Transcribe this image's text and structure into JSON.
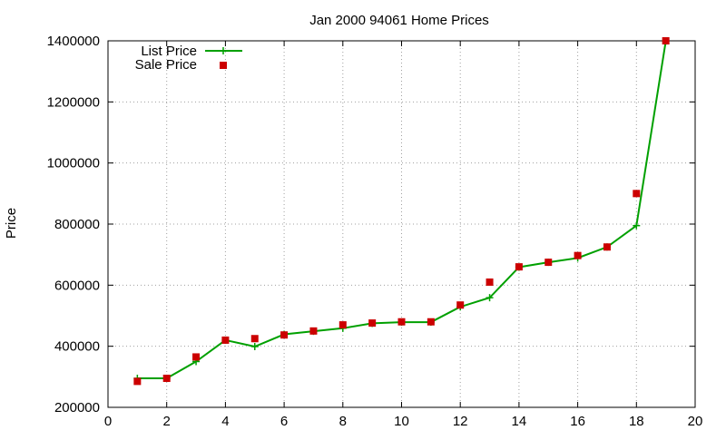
{
  "chart_data": {
    "type": "line",
    "title": "Jan 2000 94061 Home Prices",
    "xlabel": "",
    "ylabel": "Price",
    "xlim": [
      0,
      20
    ],
    "ylim": [
      200000,
      1400000
    ],
    "x_ticks": [
      0,
      2,
      4,
      6,
      8,
      10,
      12,
      14,
      16,
      18,
      20
    ],
    "y_ticks": [
      200000,
      400000,
      600000,
      800000,
      1000000,
      1200000,
      1400000
    ],
    "grid": true,
    "legend_position": "top-left",
    "series": [
      {
        "name": "List Price",
        "style": "line-with-plus-markers",
        "color": "#00a000",
        "x": [
          1,
          2,
          3,
          4,
          5,
          6,
          7,
          8,
          9,
          10,
          11,
          12,
          13,
          14,
          15,
          16,
          17,
          18,
          19
        ],
        "values": [
          295000,
          295000,
          350000,
          420000,
          399000,
          439000,
          449000,
          459000,
          475000,
          479000,
          479000,
          529000,
          559000,
          659000,
          675000,
          689000,
          725000,
          795000,
          1399000
        ]
      },
      {
        "name": "Sale Price",
        "style": "square-markers",
        "color": "#cc0000",
        "x": [
          1,
          2,
          3,
          4,
          5,
          6,
          7,
          8,
          9,
          10,
          11,
          12,
          13,
          14,
          15,
          16,
          17,
          18,
          19
        ],
        "values": [
          285000,
          295000,
          365000,
          420000,
          425000,
          437000,
          450000,
          470000,
          476000,
          480000,
          480000,
          535000,
          610000,
          660000,
          675000,
          697000,
          725000,
          900000,
          1400000
        ]
      }
    ]
  }
}
